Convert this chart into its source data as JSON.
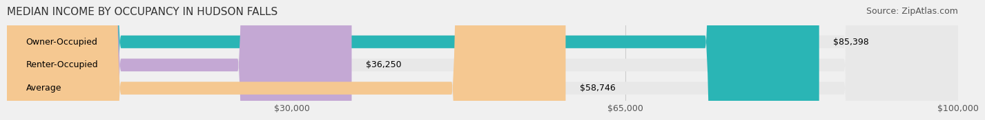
{
  "title": "MEDIAN INCOME BY OCCUPANCY IN HUDSON FALLS",
  "source": "Source: ZipAtlas.com",
  "categories": [
    "Owner-Occupied",
    "Renter-Occupied",
    "Average"
  ],
  "values": [
    85398,
    36250,
    58746
  ],
  "bar_colors": [
    "#2ab5b5",
    "#c4a8d4",
    "#f5c891"
  ],
  "bar_labels": [
    "$85,398",
    "$36,250",
    "$58,746"
  ],
  "xlim": [
    0,
    100000
  ],
  "xticks": [
    0,
    30000,
    65000,
    100000
  ],
  "xticklabels": [
    "",
    "$30,000",
    "$65,000",
    "$100,000"
  ],
  "background_color": "#f0f0f0",
  "bar_bg_color": "#e8e8e8",
  "title_fontsize": 11,
  "source_fontsize": 9,
  "label_fontsize": 9,
  "tick_fontsize": 9
}
